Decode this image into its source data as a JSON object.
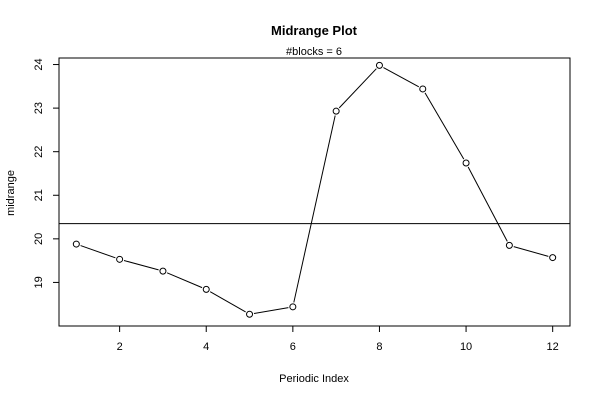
{
  "chart_data": {
    "type": "line",
    "title": "Midrange Plot",
    "subtitle": "#blocks =  6",
    "xlabel": "Periodic Index",
    "ylabel": "midrange",
    "xlim": [
      0.6,
      12.4
    ],
    "ylim": [
      18.0,
      24.15
    ],
    "xticks": [
      2,
      4,
      6,
      8,
      10,
      12
    ],
    "yticks": [
      19,
      20,
      21,
      22,
      23,
      24
    ],
    "reference_line": 20.35,
    "marker": "open-circle",
    "line_color": "#000000",
    "series": [
      {
        "x": [
          1,
          2,
          3,
          4,
          5,
          6,
          7,
          8,
          9,
          10,
          11,
          12
        ],
        "values": [
          19.88,
          19.53,
          19.26,
          18.84,
          18.27,
          18.44,
          22.93,
          23.98,
          23.44,
          21.74,
          19.85,
          19.57
        ]
      }
    ]
  }
}
